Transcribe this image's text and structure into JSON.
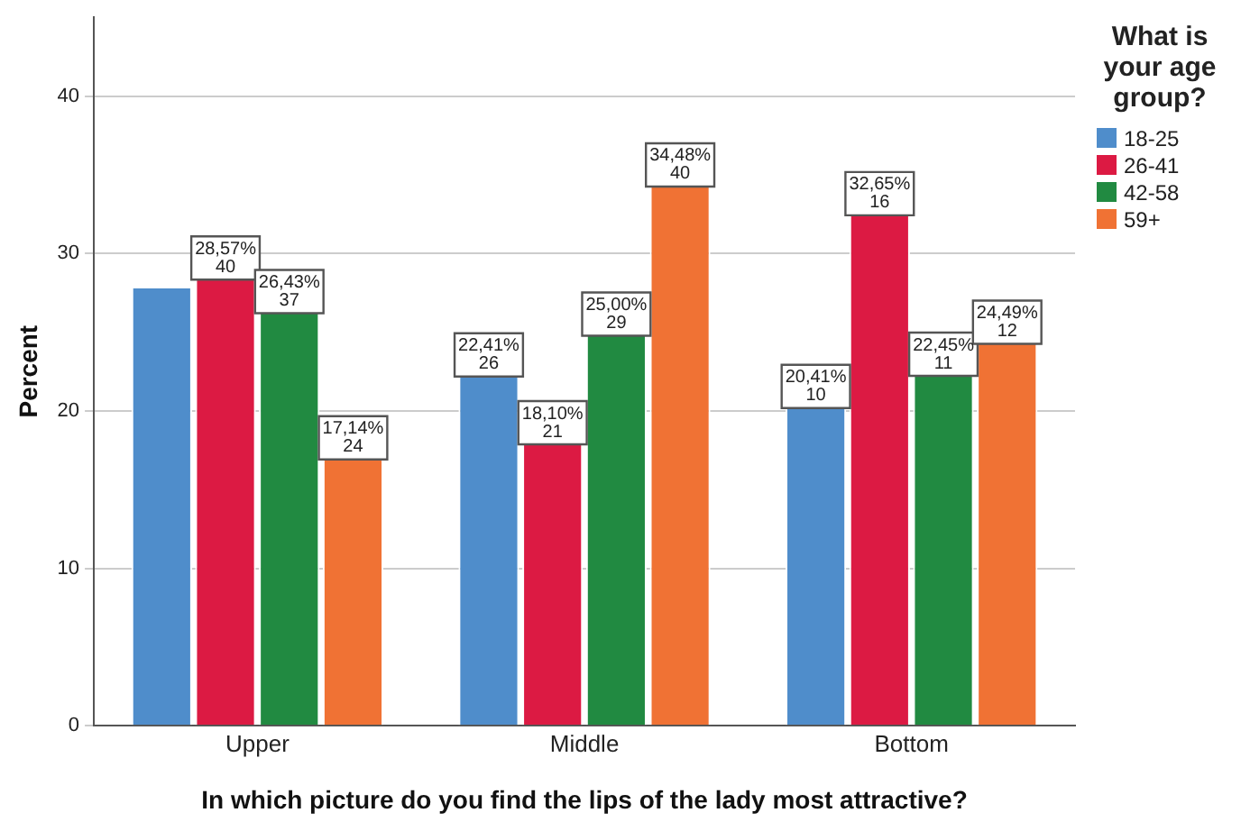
{
  "chart_data": {
    "type": "bar",
    "xlabel": "In which picture do you find the lips of the lady most attractive?",
    "ylabel": "Percent",
    "legend_title": "What is your age group?",
    "categories": [
      "Upper",
      "Middle",
      "Bottom"
    ],
    "series": [
      {
        "name": "18-25",
        "color": "#4f8dcb",
        "values": [
          27.9,
          22.41,
          20.41
        ],
        "value_labels": [
          null,
          "22,41%\n26",
          "20,41%\n10"
        ]
      },
      {
        "name": "26-41",
        "color": "#dc1a43",
        "values": [
          28.57,
          18.1,
          32.65
        ],
        "value_labels": [
          "28,57%\n40",
          "18,10%\n21",
          "32,65%\n16"
        ]
      },
      {
        "name": "42-58",
        "color": "#218a41",
        "values": [
          26.43,
          25,
          22.45
        ],
        "value_labels": [
          "26,43%\n37",
          "25,00%\n29",
          "22,45%\n11"
        ]
      },
      {
        "name": "59+",
        "color": "#f07234",
        "values": [
          17.14,
          34.48,
          24.49
        ],
        "value_labels": [
          "17,14%\n24",
          "34,48%\n40",
          "24,49%\n12"
        ]
      }
    ],
    "ylim": [
      0,
      45
    ],
    "yticks": [
      0,
      10,
      20,
      30,
      40
    ],
    "grid": "y",
    "legend": "right"
  }
}
